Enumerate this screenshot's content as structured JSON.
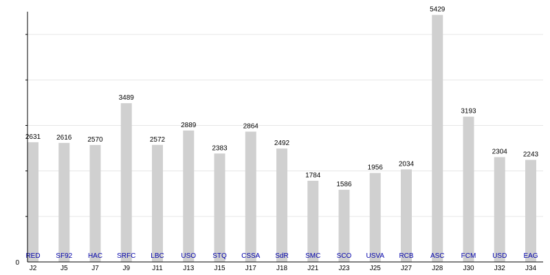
{
  "chart_data": {
    "type": "bar",
    "title": "",
    "xlabel": "",
    "ylabel": "",
    "categories": [
      "J2",
      "J5",
      "J7",
      "J9",
      "J11",
      "J13",
      "J15",
      "J17",
      "J18",
      "J21",
      "J23",
      "J25",
      "J27",
      "J28",
      "J30",
      "J32",
      "J34"
    ],
    "bar_labels": [
      "RED",
      "SF92",
      "HAC",
      "SRFC",
      "LBC",
      "USO",
      "STQ",
      "CSSA",
      "SdR",
      "SMC",
      "SCO",
      "USVA",
      "RCB",
      "ASC",
      "FCM",
      "USD",
      "EAG"
    ],
    "values": [
      2631,
      2616,
      2570,
      3489,
      2572,
      2889,
      2383,
      2864,
      2492,
      1784,
      1586,
      1956,
      2034,
      5429,
      3193,
      2304,
      2243
    ],
    "y_tick_label": "0",
    "ylim": [
      0,
      5500
    ],
    "grid": true,
    "legend": "none",
    "colors": {
      "bar": "#d0d0d0",
      "grid": "#e6e6e6",
      "axis": "#000000",
      "team_label": "#0000aa"
    }
  }
}
